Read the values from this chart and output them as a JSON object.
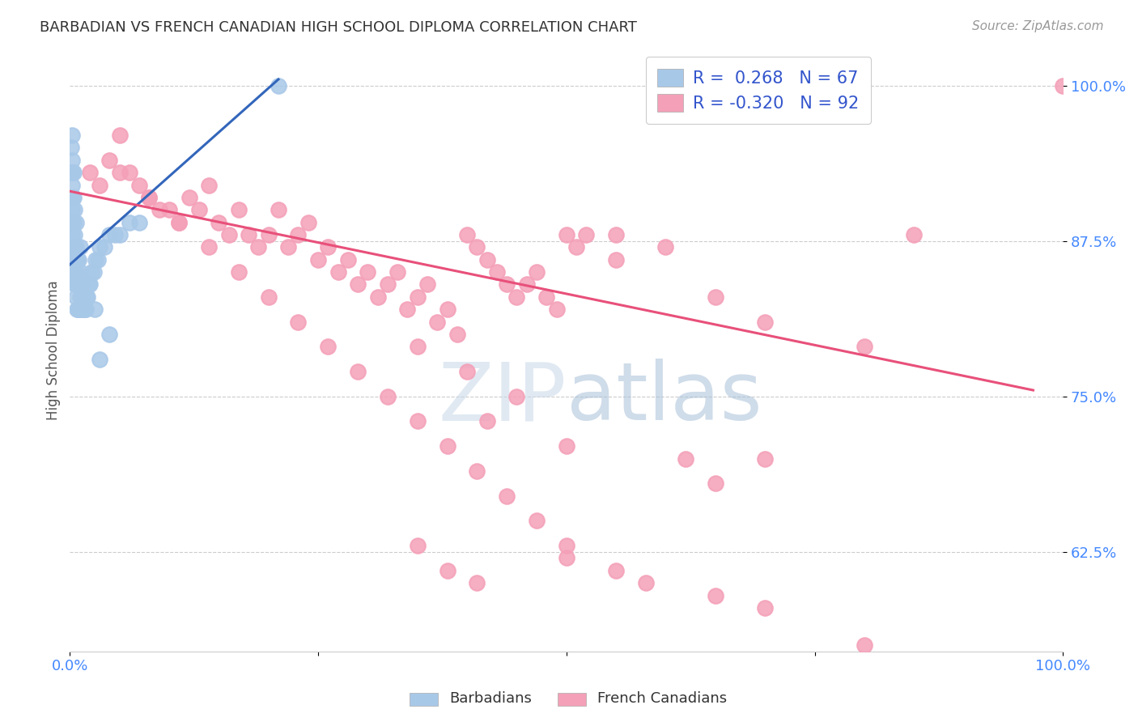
{
  "title": "BARBADIAN VS FRENCH CANADIAN HIGH SCHOOL DIPLOMA CORRELATION CHART",
  "source": "Source: ZipAtlas.com",
  "ylabel": "High School Diploma",
  "blue_color": "#a8c8e8",
  "pink_color": "#f4a0b8",
  "blue_line_color": "#3366bb",
  "pink_line_color": "#e8507a",
  "tick_color": "#4488ff",
  "grid_color": "#cccccc",
  "title_color": "#333333",
  "source_color": "#999999",
  "watermark_color": "#d0dce8",
  "ylabel_color": "#555555",
  "legend_text_color": "#3355cc",
  "xlim": [
    0.0,
    1.0
  ],
  "ylim": [
    0.545,
    1.03
  ],
  "yticks": [
    0.625,
    0.75,
    0.875,
    1.0
  ],
  "ytick_labels": [
    "62.5%",
    "75.0%",
    "87.5%",
    "100.0%"
  ],
  "xtick_labels": [
    "0.0%",
    "",
    "",
    "",
    "100.0%"
  ],
  "blue_line_x": [
    0.0,
    0.21
  ],
  "blue_line_y": [
    0.856,
    1.005
  ],
  "pink_line_x": [
    0.0,
    0.97
  ],
  "pink_line_y": [
    0.915,
    0.755
  ],
  "blue_x": [
    0.001,
    0.001,
    0.001,
    0.001,
    0.002,
    0.002,
    0.002,
    0.002,
    0.002,
    0.002,
    0.003,
    0.003,
    0.003,
    0.003,
    0.003,
    0.004,
    0.004,
    0.004,
    0.004,
    0.004,
    0.005,
    0.005,
    0.005,
    0.005,
    0.006,
    0.006,
    0.006,
    0.006,
    0.007,
    0.007,
    0.007,
    0.008,
    0.008,
    0.008,
    0.009,
    0.009,
    0.009,
    0.01,
    0.01,
    0.01,
    0.011,
    0.011,
    0.012,
    0.012,
    0.013,
    0.014,
    0.015,
    0.016,
    0.017,
    0.018,
    0.019,
    0.02,
    0.022,
    0.024,
    0.026,
    0.028,
    0.03,
    0.035,
    0.04,
    0.045,
    0.05,
    0.06,
    0.07,
    0.03,
    0.04,
    0.21,
    0.025
  ],
  "blue_y": [
    0.87,
    0.91,
    0.93,
    0.95,
    0.86,
    0.88,
    0.9,
    0.92,
    0.94,
    0.96,
    0.85,
    0.87,
    0.89,
    0.91,
    0.93,
    0.85,
    0.87,
    0.89,
    0.91,
    0.93,
    0.84,
    0.86,
    0.88,
    0.9,
    0.83,
    0.85,
    0.87,
    0.89,
    0.82,
    0.84,
    0.86,
    0.82,
    0.84,
    0.86,
    0.82,
    0.84,
    0.86,
    0.83,
    0.85,
    0.87,
    0.82,
    0.84,
    0.82,
    0.84,
    0.83,
    0.82,
    0.82,
    0.82,
    0.83,
    0.83,
    0.84,
    0.84,
    0.85,
    0.85,
    0.86,
    0.86,
    0.87,
    0.87,
    0.88,
    0.88,
    0.88,
    0.89,
    0.89,
    0.78,
    0.8,
    1.0,
    0.82
  ],
  "pink_x": [
    0.02,
    0.03,
    0.04,
    0.05,
    0.06,
    0.07,
    0.08,
    0.09,
    0.1,
    0.11,
    0.12,
    0.13,
    0.14,
    0.15,
    0.16,
    0.17,
    0.18,
    0.19,
    0.2,
    0.21,
    0.22,
    0.23,
    0.24,
    0.25,
    0.26,
    0.27,
    0.28,
    0.29,
    0.3,
    0.31,
    0.32,
    0.33,
    0.34,
    0.35,
    0.36,
    0.37,
    0.38,
    0.39,
    0.4,
    0.41,
    0.42,
    0.43,
    0.44,
    0.45,
    0.46,
    0.47,
    0.48,
    0.49,
    0.5,
    0.51,
    0.05,
    0.08,
    0.11,
    0.14,
    0.17,
    0.2,
    0.23,
    0.26,
    0.29,
    0.32,
    0.35,
    0.38,
    0.41,
    0.44,
    0.47,
    0.5,
    0.55,
    0.6,
    0.65,
    0.7,
    0.35,
    0.4,
    0.45,
    0.42,
    0.5,
    0.52,
    0.55,
    0.62,
    0.65,
    0.7,
    0.35,
    0.38,
    0.41,
    0.5,
    0.55,
    0.58,
    0.65,
    0.7,
    0.8,
    0.85,
    0.8,
    1.0
  ],
  "pink_y": [
    0.93,
    0.92,
    0.94,
    0.96,
    0.93,
    0.92,
    0.91,
    0.9,
    0.9,
    0.89,
    0.91,
    0.9,
    0.92,
    0.89,
    0.88,
    0.9,
    0.88,
    0.87,
    0.88,
    0.9,
    0.87,
    0.88,
    0.89,
    0.86,
    0.87,
    0.85,
    0.86,
    0.84,
    0.85,
    0.83,
    0.84,
    0.85,
    0.82,
    0.83,
    0.84,
    0.81,
    0.82,
    0.8,
    0.88,
    0.87,
    0.86,
    0.85,
    0.84,
    0.83,
    0.84,
    0.85,
    0.83,
    0.82,
    0.88,
    0.87,
    0.93,
    0.91,
    0.89,
    0.87,
    0.85,
    0.83,
    0.81,
    0.79,
    0.77,
    0.75,
    0.73,
    0.71,
    0.69,
    0.67,
    0.65,
    0.63,
    0.88,
    0.87,
    0.83,
    0.81,
    0.79,
    0.77,
    0.75,
    0.73,
    0.71,
    0.88,
    0.86,
    0.7,
    0.68,
    0.7,
    0.63,
    0.61,
    0.6,
    0.62,
    0.61,
    0.6,
    0.59,
    0.58,
    0.55,
    0.88,
    0.79,
    1.0
  ]
}
